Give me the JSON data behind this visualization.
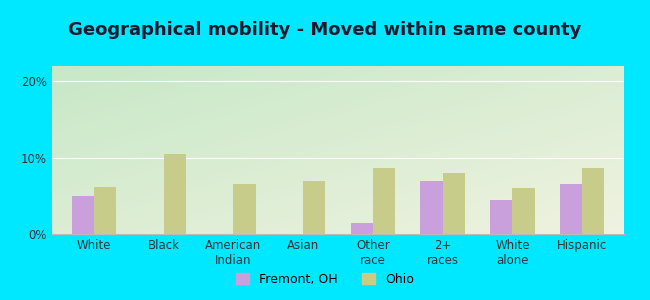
{
  "title": "Geographical mobility - Moved within same county",
  "categories": [
    "White",
    "Black",
    "American\nIndian",
    "Asian",
    "Other\nrace",
    "2+\nraces",
    "White\nalone",
    "Hispanic"
  ],
  "fremont_values": [
    5.0,
    0.0,
    0.0,
    0.0,
    1.5,
    7.0,
    4.5,
    6.5
  ],
  "ohio_values": [
    6.2,
    10.5,
    6.5,
    7.0,
    8.7,
    8.0,
    6.0,
    8.7
  ],
  "fremont_color": "#c9a0dc",
  "ohio_color": "#c8cc8a",
  "background_outer": "#00e8ff",
  "ylim": [
    0,
    22
  ],
  "yticks": [
    0,
    10,
    20
  ],
  "ytick_labels": [
    "0%",
    "10%",
    "20%"
  ],
  "title_fontsize": 13,
  "tick_fontsize": 8.5,
  "legend_labels": [
    "Fremont, OH",
    "Ohio"
  ],
  "bar_width": 0.32,
  "grad_top_left": "#c8e6c9",
  "grad_bottom_right": "#f5f5dc"
}
